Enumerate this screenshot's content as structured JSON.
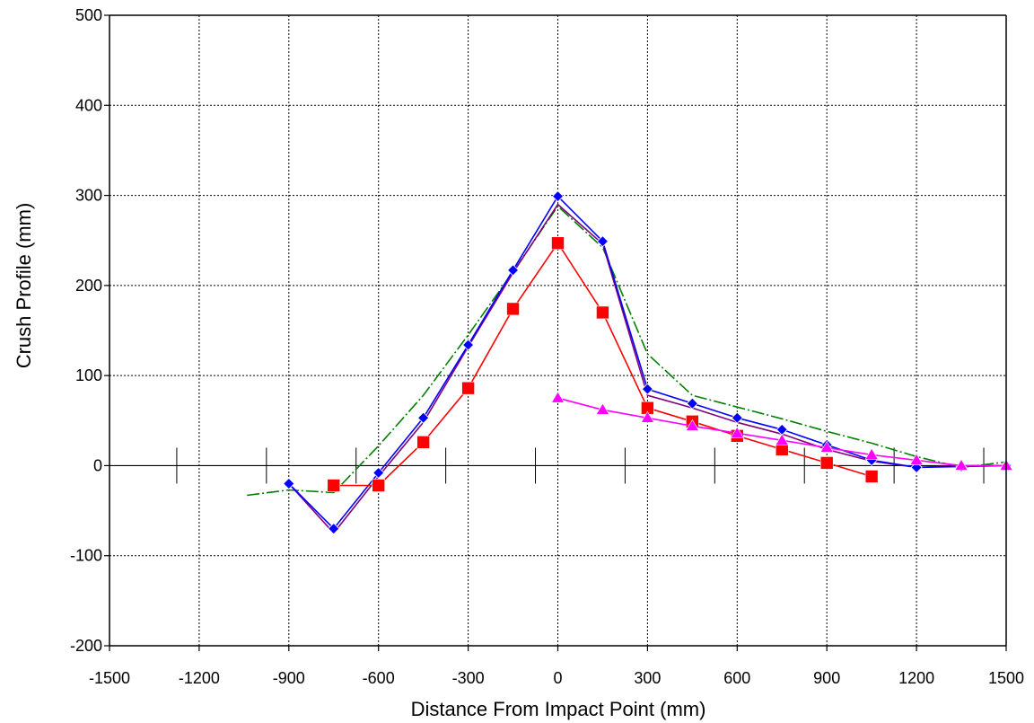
{
  "chart_data": {
    "type": "line",
    "title": "",
    "xlabel": "Distance From Impact Point (mm)",
    "ylabel": "Crush Profile (mm)",
    "xlim": [
      -1500,
      1500
    ],
    "ylim": [
      -200,
      500
    ],
    "xticks": [
      -1500,
      -1200,
      -900,
      -600,
      -300,
      0,
      300,
      600,
      900,
      1200,
      1500
    ],
    "yticks": [
      -200,
      -100,
      0,
      100,
      200,
      300,
      400,
      500
    ],
    "xtick_labels": [
      "-1500",
      "-1200",
      "-900",
      "-600",
      "-300",
      "0",
      "300",
      "600",
      "900",
      "1200",
      "1500"
    ],
    "ytick_labels": [
      "-200",
      "-100",
      "0",
      "100",
      "200",
      "300",
      "400",
      "500"
    ],
    "grid": true,
    "zero_line_ticks": [
      -1275,
      -975,
      -675,
      -375,
      -75,
      225,
      525,
      825,
      1125,
      1425
    ],
    "series": [
      {
        "color": "#008000",
        "marker": "none",
        "dash": true,
        "x": [
          -1040,
          -900,
          -750,
          -600,
          -450,
          -300,
          -150,
          0,
          150,
          300,
          450,
          600,
          750,
          900,
          1050,
          1200,
          1350,
          1500
        ],
        "y": [
          -33,
          -27,
          -30,
          22,
          78,
          145,
          215,
          288,
          242,
          124,
          78,
          65,
          52,
          38,
          25,
          10,
          -2,
          4
        ]
      },
      {
        "color": "#800080",
        "marker": "none",
        "dash": false,
        "x": [
          -900,
          -750,
          -600,
          -450,
          -300,
          -150,
          0,
          150,
          300,
          450,
          600,
          750,
          900,
          1050,
          1200,
          1350,
          1500
        ],
        "y": [
          -20,
          -75,
          -12,
          48,
          132,
          214,
          290,
          246,
          78,
          64,
          48,
          35,
          18,
          5,
          -2,
          0,
          0
        ]
      },
      {
        "color": "#0000ff",
        "marker": "diamond",
        "dash": false,
        "x": [
          -900,
          -750,
          -600,
          -450,
          -300,
          -150,
          0,
          150,
          300,
          450,
          600,
          750,
          900,
          1050,
          1200,
          1350,
          1500
        ],
        "y": [
          -20,
          -70,
          -8,
          53,
          134,
          217,
          299,
          249,
          85,
          69,
          53,
          40,
          23,
          6,
          -2,
          -1,
          0
        ]
      },
      {
        "color": "#ff0000",
        "marker": "square",
        "dash": false,
        "x": [
          -750,
          -600,
          -450,
          -300,
          -150,
          0,
          150,
          300,
          450,
          600,
          750,
          900,
          1050
        ],
        "y": [
          -22,
          -22,
          26,
          86,
          174,
          247,
          170,
          64,
          49,
          33,
          18,
          3,
          -12
        ]
      },
      {
        "color": "#ff00ff",
        "marker": "triangle",
        "dash": false,
        "x": [
          0,
          150,
          300,
          450,
          600,
          750,
          900,
          1050,
          1200,
          1350,
          1500
        ],
        "y": [
          75,
          62,
          53,
          44,
          36,
          28,
          20,
          12,
          6,
          0,
          0
        ]
      }
    ]
  }
}
